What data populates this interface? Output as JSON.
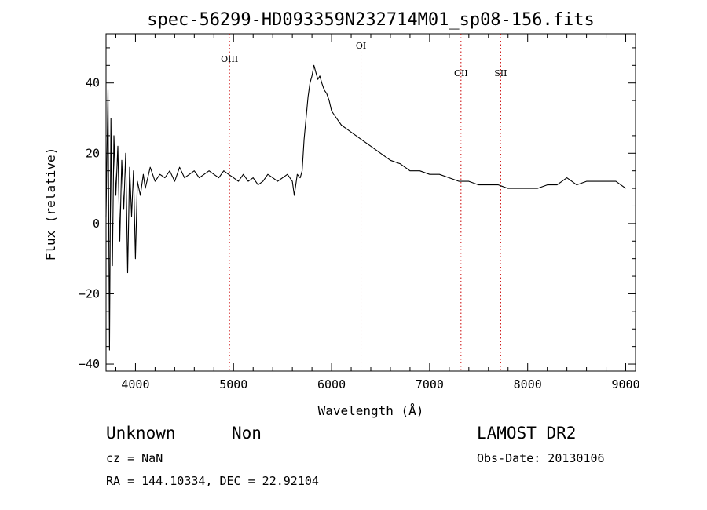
{
  "chart_data": {
    "type": "line",
    "title": "spec-56299-HD093359N232714M01_sp08-156.fits",
    "xlabel": "Wavelength (Å)",
    "ylabel": "Flux (relative)",
    "xlim": [
      3700,
      9100
    ],
    "ylim": [
      -42,
      54
    ],
    "xticks": [
      4000,
      5000,
      6000,
      7000,
      8000,
      9000
    ],
    "xtick_labels": [
      "4000",
      "5000",
      "6000",
      "7000",
      "8000",
      "9000"
    ],
    "yticks": [
      -40,
      -20,
      0,
      20,
      40
    ],
    "ytick_labels": [
      "−40",
      "−20",
      "0",
      "20",
      "40"
    ],
    "grid": false,
    "line_color": "#000000",
    "marker_color": "#cc0000",
    "emission_lines": [
      {
        "name": "OIII",
        "wavelength": 4959
      },
      {
        "name": "OI",
        "wavelength": 6300
      },
      {
        "name": "OII",
        "wavelength": 7320
      },
      {
        "name": "SII",
        "wavelength": 7725
      }
    ],
    "series": [
      {
        "x": [
          3700,
          3720,
          3735,
          3750,
          3765,
          3780,
          3800,
          3820,
          3840,
          3860,
          3880,
          3900,
          3920,
          3940,
          3960,
          3980,
          4000,
          4020,
          4050,
          4080,
          4100,
          4150,
          4200,
          4250,
          4300,
          4350,
          4400,
          4450,
          4500,
          4550,
          4600,
          4650,
          4700,
          4750,
          4800,
          4850,
          4900,
          4950,
          5000,
          5050,
          5100,
          5150,
          5200,
          5250,
          5300,
          5350,
          5400,
          5450,
          5500,
          5550,
          5600,
          5620,
          5650,
          5680,
          5700,
          5720,
          5740,
          5760,
          5780,
          5800,
          5820,
          5840,
          5860,
          5880,
          5900,
          5925,
          5950,
          5975,
          6000,
          6050,
          6100,
          6150,
          6200,
          6250,
          6300,
          6350,
          6400,
          6450,
          6500,
          6600,
          6700,
          6800,
          6900,
          7000,
          7100,
          7200,
          7300,
          7400,
          7500,
          7600,
          7700,
          7800,
          7900,
          8000,
          8100,
          8200,
          8300,
          8350,
          8400,
          8450,
          8500,
          8600,
          8700,
          8800,
          8900,
          9000
        ],
        "y": [
          2,
          38,
          -36,
          30,
          -12,
          25,
          8,
          22,
          -5,
          18,
          4,
          20,
          -14,
          16,
          2,
          15,
          -10,
          12,
          8,
          14,
          10,
          16,
          12,
          14,
          13,
          15,
          12,
          16,
          13,
          14,
          15,
          13,
          14,
          15,
          14,
          13,
          15,
          14,
          13,
          12,
          14,
          12,
          13,
          11,
          12,
          14,
          13,
          12,
          13,
          14,
          12,
          8,
          14,
          13,
          15,
          24,
          30,
          36,
          40,
          42,
          45,
          43,
          41,
          42,
          40,
          38,
          37,
          35,
          32,
          30,
          28,
          27,
          26,
          25,
          24,
          23,
          22,
          21,
          20,
          18,
          17,
          15,
          15,
          14,
          14,
          13,
          12,
          12,
          11,
          11,
          11,
          10,
          10,
          10,
          10,
          11,
          11,
          12,
          13,
          12,
          11,
          12,
          12,
          12,
          12,
          10
        ]
      }
    ]
  },
  "info": {
    "object_class": "Unknown",
    "object_subclass": "Non",
    "survey": "LAMOST DR2",
    "cz": "cz = NaN",
    "obs_date": "Obs-Date: 20130106",
    "coords": "RA = 144.10334, DEC =  22.92104"
  }
}
